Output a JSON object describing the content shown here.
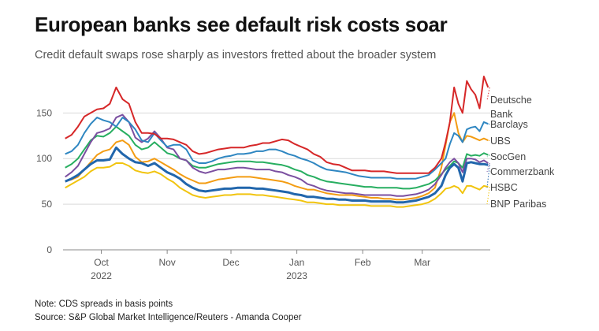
{
  "title": "European banks see default risk costs soar",
  "subtitle": "Credit default swaps rose sharply as investors fretted about the broader system",
  "notes": {
    "units": "Note: CDS spreads in basis points",
    "source": "Source: S&P Global Market Intelligence/Reuters - Amanda Cooper"
  },
  "chart_data": {
    "type": "line",
    "title": "European banks see default risk costs soar",
    "subtitle": "Credit default swaps rose sharply as investors fretted about the broader system",
    "xlabel": "",
    "ylabel": "",
    "ylim": [
      0,
      190
    ],
    "yticks": [
      0,
      50,
      100,
      150
    ],
    "grid": true,
    "legend": "right-end labels",
    "x_ticks": [
      {
        "label": "Oct",
        "sub": "2022",
        "x": 16
      },
      {
        "label": "Nov",
        "sub": "",
        "x": 47
      },
      {
        "label": "Dec",
        "sub": "",
        "x": 77
      },
      {
        "label": "Jan",
        "sub": "2023",
        "x": 108
      },
      {
        "label": "Feb",
        "sub": "",
        "x": 139
      },
      {
        "label": "Mar",
        "sub": "",
        "x": 167
      }
    ],
    "x": [
      -1,
      2,
      5,
      8,
      11,
      14,
      17,
      20,
      23,
      26,
      29,
      32,
      35,
      38,
      41,
      44,
      47,
      50,
      53,
      56,
      59,
      62,
      65,
      68,
      71,
      74,
      77,
      80,
      83,
      86,
      89,
      92,
      95,
      98,
      101,
      104,
      107,
      110,
      113,
      116,
      119,
      122,
      125,
      128,
      131,
      134,
      137,
      140,
      143,
      146,
      149,
      152,
      155,
      158,
      161,
      164,
      167,
      170,
      173,
      176,
      178,
      180,
      182,
      184,
      186,
      188,
      190,
      192,
      194,
      196,
      198
    ],
    "series": [
      {
        "name": "Deutsche Bank",
        "color": "#d62728",
        "values": [
          122,
          126,
          135,
          146,
          150,
          154,
          155,
          160,
          178,
          165,
          160,
          140,
          128,
          128,
          127,
          122,
          122,
          121,
          118,
          115,
          108,
          105,
          106,
          108,
          110,
          111,
          112,
          112,
          112,
          114,
          115,
          117,
          117,
          119,
          121,
          120,
          116,
          113,
          110,
          105,
          102,
          96,
          94,
          93,
          90,
          87,
          87,
          87,
          86,
          86,
          86,
          85,
          84,
          84,
          84,
          84,
          84,
          84,
          90,
          100,
          118,
          140,
          178,
          160,
          150,
          185,
          176,
          170,
          155,
          190,
          178
        ]
      },
      {
        "name": "Barclays",
        "color": "#2e86c1",
        "values": [
          105,
          108,
          115,
          128,
          138,
          145,
          142,
          140,
          135,
          145,
          140,
          132,
          120,
          118,
          128,
          120,
          113,
          115,
          115,
          110,
          98,
          95,
          95,
          97,
          100,
          102,
          103,
          105,
          105,
          106,
          108,
          108,
          110,
          110,
          108,
          105,
          103,
          100,
          98,
          95,
          91,
          88,
          87,
          86,
          85,
          83,
          81,
          80,
          79,
          79,
          79,
          79,
          78,
          78,
          78,
          78,
          80,
          82,
          88,
          95,
          100,
          116,
          128,
          125,
          118,
          132,
          134,
          135,
          130,
          140,
          138
        ]
      },
      {
        "name": "UBS",
        "color": "#f39c12",
        "values": [
          75,
          77,
          80,
          88,
          96,
          104,
          108,
          110,
          118,
          120,
          115,
          102,
          96,
          97,
          100,
          96,
          92,
          88,
          83,
          79,
          76,
          73,
          73,
          75,
          77,
          78,
          79,
          80,
          80,
          80,
          79,
          78,
          77,
          76,
          75,
          73,
          70,
          68,
          66,
          66,
          64,
          62,
          61,
          60,
          60,
          60,
          59,
          58,
          57,
          57,
          56,
          56,
          55,
          55,
          56,
          57,
          59,
          62,
          68,
          90,
          115,
          140,
          150,
          128,
          118,
          125,
          124,
          122,
          120,
          122,
          120
        ]
      },
      {
        "name": "SocGen",
        "color": "#27ae60",
        "values": [
          90,
          94,
          100,
          110,
          120,
          125,
          124,
          128,
          135,
          130,
          125,
          115,
          110,
          112,
          118,
          112,
          106,
          104,
          100,
          98,
          92,
          90,
          90,
          92,
          94,
          95,
          96,
          97,
          97,
          97,
          96,
          96,
          95,
          94,
          93,
          91,
          88,
          86,
          82,
          80,
          77,
          75,
          74,
          73,
          72,
          71,
          70,
          69,
          69,
          68,
          68,
          68,
          68,
          67,
          67,
          68,
          70,
          72,
          76,
          83,
          88,
          92,
          97,
          95,
          90,
          105,
          103,
          104,
          103,
          106,
          104
        ]
      },
      {
        "name": "Commerzbank",
        "color": "#7b4fa0",
        "values": [
          80,
          85,
          92,
          105,
          118,
          128,
          130,
          133,
          145,
          148,
          140,
          123,
          118,
          122,
          130,
          122,
          112,
          110,
          100,
          98,
          90,
          86,
          84,
          86,
          88,
          88,
          89,
          90,
          90,
          89,
          88,
          88,
          88,
          86,
          85,
          82,
          80,
          77,
          72,
          70,
          67,
          65,
          64,
          63,
          62,
          62,
          61,
          60,
          60,
          60,
          60,
          60,
          59,
          59,
          60,
          61,
          63,
          66,
          72,
          82,
          90,
          96,
          100,
          95,
          85,
          100,
          100,
          99,
          96,
          98,
          95
        ]
      },
      {
        "name": "HSBC",
        "color": "#2166ac",
        "values": [
          75,
          78,
          82,
          88,
          94,
          98,
          98,
          99,
          112,
          105,
          100,
          96,
          95,
          92,
          95,
          90,
          85,
          82,
          78,
          72,
          68,
          65,
          64,
          65,
          66,
          67,
          67,
          68,
          68,
          68,
          67,
          67,
          66,
          65,
          64,
          63,
          61,
          60,
          58,
          58,
          57,
          56,
          56,
          55,
          55,
          54,
          54,
          54,
          53,
          53,
          53,
          53,
          52,
          52,
          53,
          54,
          56,
          58,
          62,
          70,
          82,
          90,
          94,
          90,
          75,
          95,
          96,
          95,
          94,
          94,
          93
        ]
      },
      {
        "name": "BNP Paribas",
        "color": "#f1c40f",
        "values": [
          68,
          72,
          76,
          80,
          86,
          90,
          90,
          91,
          95,
          95,
          92,
          87,
          85,
          84,
          86,
          83,
          78,
          74,
          68,
          64,
          60,
          58,
          57,
          58,
          59,
          60,
          60,
          61,
          61,
          61,
          60,
          60,
          59,
          58,
          57,
          56,
          55,
          54,
          52,
          52,
          51,
          50,
          50,
          49,
          49,
          49,
          49,
          49,
          48,
          48,
          48,
          48,
          47,
          47,
          48,
          49,
          50,
          52,
          56,
          62,
          67,
          68,
          70,
          68,
          62,
          70,
          70,
          68,
          66,
          70,
          69
        ]
      }
    ]
  }
}
